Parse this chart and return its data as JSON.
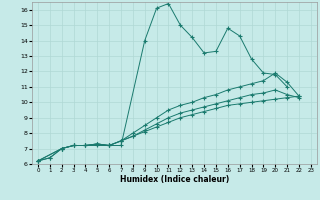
{
  "xlabel": "Humidex (Indice chaleur)",
  "background_color": "#c6eae8",
  "grid_color": "#b0d8d5",
  "line_color": "#1a7a6e",
  "xlim": [
    -0.5,
    23.5
  ],
  "ylim": [
    6,
    16.5
  ],
  "yticks": [
    6,
    7,
    8,
    9,
    10,
    11,
    12,
    13,
    14,
    15,
    16
  ],
  "xticks": [
    0,
    1,
    2,
    3,
    4,
    5,
    6,
    7,
    8,
    9,
    10,
    11,
    12,
    13,
    14,
    15,
    16,
    17,
    18,
    19,
    20,
    21,
    22,
    23
  ],
  "s1x": [
    0,
    1,
    2,
    3,
    4,
    5,
    6,
    7,
    9,
    10,
    11,
    12,
    13,
    14,
    15,
    16,
    17,
    18,
    19,
    20,
    21
  ],
  "s1y": [
    6.2,
    6.4,
    7.0,
    7.2,
    7.2,
    7.3,
    7.2,
    7.2,
    14.0,
    16.1,
    16.4,
    15.0,
    14.2,
    13.2,
    13.3,
    14.8,
    14.3,
    12.8,
    11.9,
    11.8,
    11.0
  ],
  "s2x": [
    0,
    1,
    2,
    3,
    4,
    5,
    6,
    7,
    8,
    9,
    10,
    11,
    12,
    13,
    14,
    15,
    16,
    17,
    18,
    19,
    20,
    21,
    22
  ],
  "s2y": [
    6.2,
    6.4,
    7.0,
    7.2,
    7.2,
    7.2,
    7.2,
    7.5,
    7.8,
    8.1,
    8.4,
    8.7,
    9.0,
    9.2,
    9.4,
    9.6,
    9.8,
    9.9,
    10.0,
    10.1,
    10.2,
    10.3,
    10.4
  ],
  "s3x": [
    0,
    2,
    3,
    4,
    5,
    6,
    7,
    8,
    9,
    10,
    11,
    12,
    13,
    14,
    15,
    16,
    17,
    18,
    19,
    20,
    21,
    22
  ],
  "s3y": [
    6.2,
    7.0,
    7.2,
    7.2,
    7.3,
    7.2,
    7.5,
    8.0,
    8.5,
    9.0,
    9.5,
    9.8,
    10.0,
    10.3,
    10.5,
    10.8,
    11.0,
    11.2,
    11.4,
    11.9,
    11.3,
    10.4
  ],
  "s4x": [
    0,
    2,
    3,
    4,
    5,
    6,
    7,
    8,
    9,
    10,
    11,
    12,
    13,
    14,
    15,
    16,
    17,
    18,
    19,
    20,
    21,
    22
  ],
  "s4y": [
    6.2,
    7.0,
    7.2,
    7.2,
    7.3,
    7.2,
    7.5,
    7.8,
    8.2,
    8.6,
    9.0,
    9.3,
    9.5,
    9.7,
    9.9,
    10.1,
    10.3,
    10.5,
    10.6,
    10.8,
    10.5,
    10.3
  ]
}
